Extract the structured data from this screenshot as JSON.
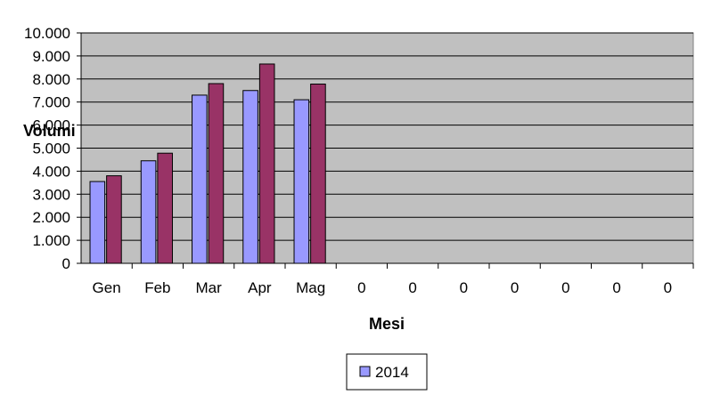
{
  "chart_data": {
    "type": "bar",
    "title": "",
    "xlabel": "Mesi",
    "ylabel": "Volumi",
    "ylim": [
      0,
      10000
    ],
    "ytick_step": 1000,
    "ytick_labels": [
      "0",
      "1.000",
      "2.000",
      "3.000",
      "4.000",
      "5.000",
      "6.000",
      "7.000",
      "8.000",
      "9.000",
      "10.000"
    ],
    "grid": true,
    "legend_position": "bottom",
    "categories": [
      "Gen",
      "Feb",
      "Mar",
      "Apr",
      "Mag",
      "0",
      "0",
      "0",
      "0",
      "0",
      "0",
      "0"
    ],
    "series": [
      {
        "name": "2014",
        "color": "#9999FF",
        "values": [
          3550,
          4450,
          7300,
          7500,
          7100,
          null,
          null,
          null,
          null,
          null,
          null,
          null
        ]
      },
      {
        "color": "#993366",
        "values": [
          3800,
          4780,
          7800,
          8650,
          7780,
          null,
          null,
          null,
          null,
          null,
          null,
          null
        ]
      }
    ],
    "plot_background": "#C0C0C0"
  }
}
